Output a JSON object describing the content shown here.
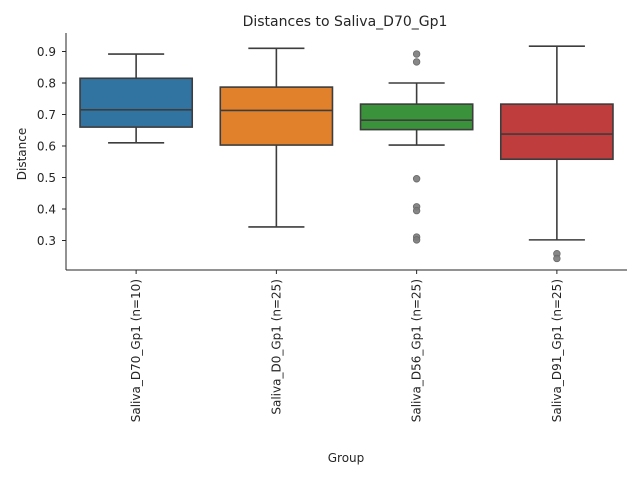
{
  "chart_data": {
    "type": "box",
    "title": "Distances to Saliva_D70_Gp1",
    "xlabel": "Group",
    "ylabel": "Distance",
    "ylim": [
      0.21,
      0.95
    ],
    "yticks": [
      0.3,
      0.4,
      0.5,
      0.6,
      0.7,
      0.8,
      0.9
    ],
    "ytick_labels": [
      "0.3",
      "0.4",
      "0.5",
      "0.6",
      "0.7",
      "0.8",
      "0.9"
    ],
    "grid": false,
    "categories": [
      "Saliva_D70_Gp1 (n=10)",
      "Saliva_D0_Gp1 (n=25)",
      "Saliva_D56_Gp1 (n=25)",
      "Saliva_D91_Gp1 (n=25)"
    ],
    "boxes": [
      {
        "q1": 0.66,
        "median": 0.715,
        "q3": 0.815,
        "whisker_low": 0.61,
        "whisker_high": 0.892,
        "outliers": [],
        "color": "#3274a1"
      },
      {
        "q1": 0.603,
        "median": 0.713,
        "q3": 0.787,
        "whisker_low": 0.343,
        "whisker_high": 0.91,
        "outliers": [],
        "color": "#e1812c"
      },
      {
        "q1": 0.652,
        "median": 0.682,
        "q3": 0.733,
        "whisker_low": 0.603,
        "whisker_high": 0.8,
        "outliers": [
          0.892,
          0.867,
          0.496,
          0.407,
          0.395,
          0.311,
          0.302
        ],
        "color": "#3a923a"
      },
      {
        "q1": 0.558,
        "median": 0.638,
        "q3": 0.733,
        "whisker_low": 0.302,
        "whisker_high": 0.917,
        "outliers": [
          0.258,
          0.243
        ],
        "color": "#c03d3e"
      }
    ]
  }
}
